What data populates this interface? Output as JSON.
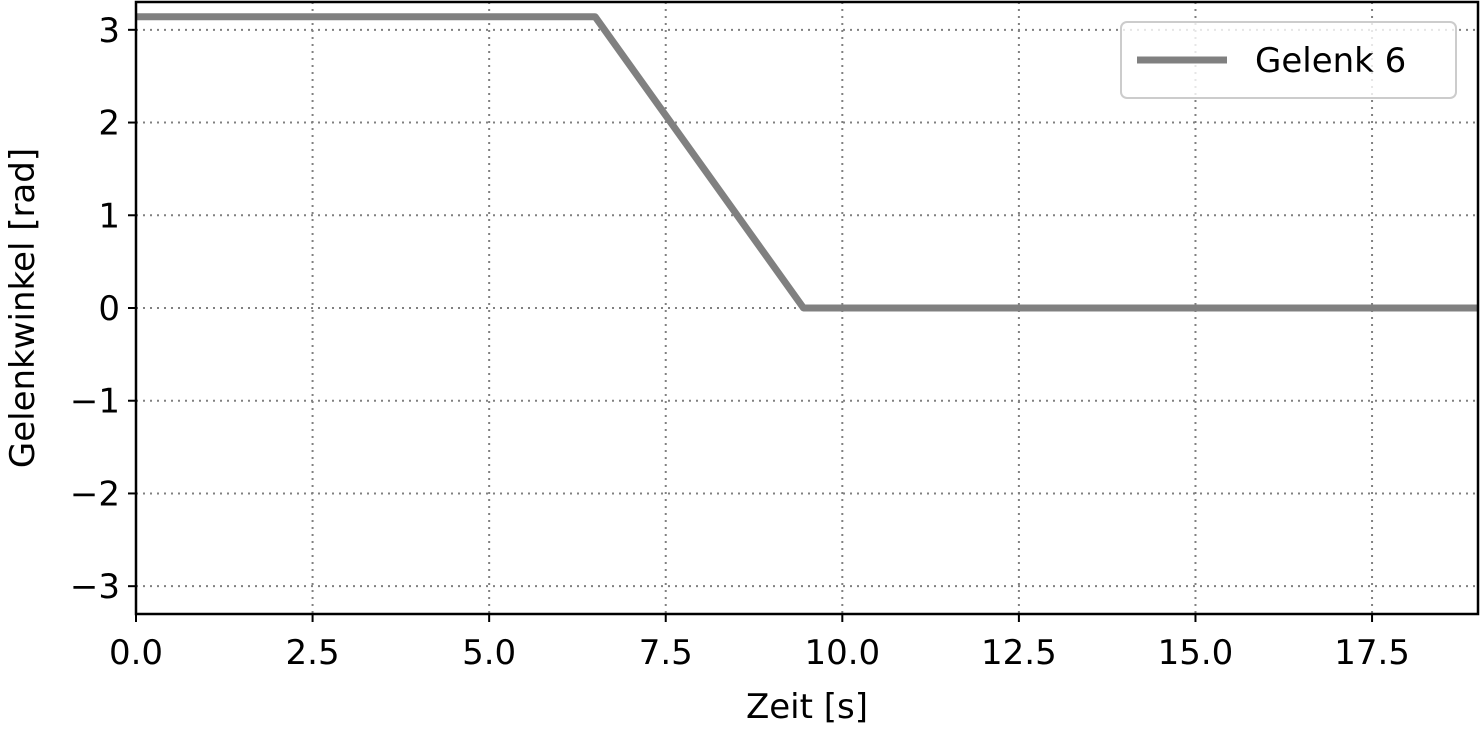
{
  "chart_data": {
    "type": "line",
    "xlabel": "Zeit [s]",
    "ylabel": "Gelenkwinkel [rad]",
    "xlim": [
      0,
      19
    ],
    "ylim": [
      -3.3,
      3.3
    ],
    "x_ticks": [
      0,
      2.5,
      5,
      7.5,
      10,
      12.5,
      15,
      17.5
    ],
    "x_tick_labels": [
      "0.0",
      "2.5",
      "5.0",
      "7.5",
      "10.0",
      "12.5",
      "15.0",
      "17.5"
    ],
    "y_ticks": [
      3,
      2,
      1,
      0,
      -1,
      -2,
      -3
    ],
    "y_tick_labels": [
      "3",
      "2",
      "1",
      "0",
      "−1",
      "−2",
      "−3"
    ],
    "grid": true,
    "grid_style": "dotted",
    "legend_position": "top-right",
    "series": [
      {
        "name": "Gelenk 6",
        "color": "#808080",
        "points": [
          {
            "x": 0,
            "y": 3.1416
          },
          {
            "x": 6.5,
            "y": 3.1416
          },
          {
            "x": 9.45,
            "y": 0
          },
          {
            "x": 19,
            "y": 0
          }
        ]
      }
    ]
  }
}
